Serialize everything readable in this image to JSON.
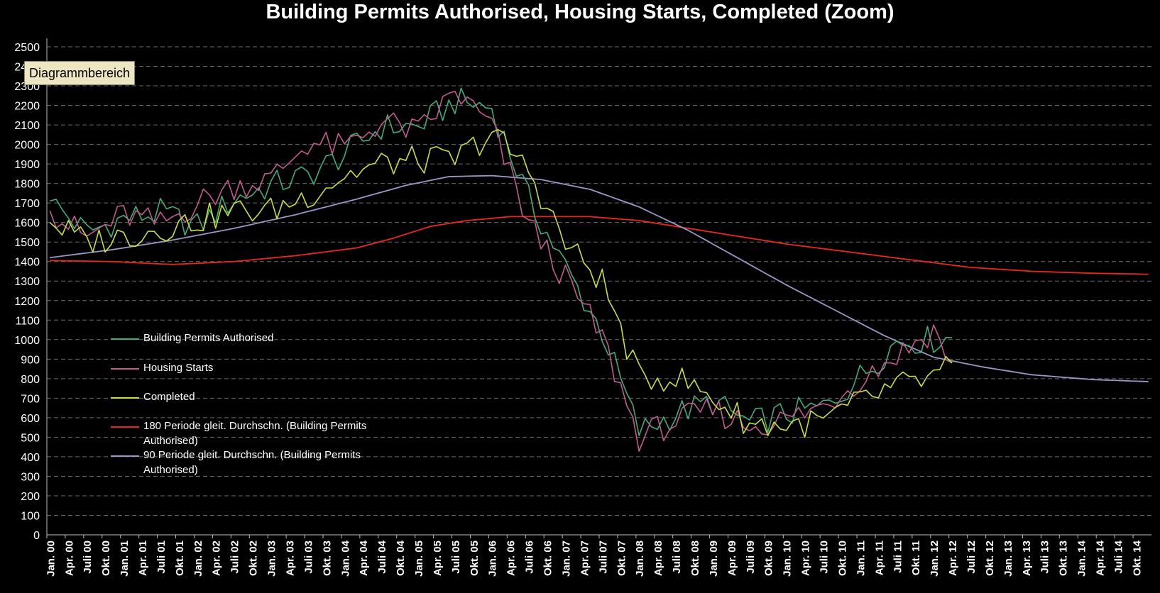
{
  "chart_data": {
    "type": "line",
    "title": "Building Permits Authorised, Housing Starts, Completed (Zoom)",
    "tooltip": "Diagrammbereich",
    "xlabel": "",
    "ylabel": "",
    "ylim": [
      0,
      2500
    ],
    "yticks": [
      0,
      100,
      200,
      300,
      400,
      500,
      600,
      700,
      800,
      900,
      1000,
      1100,
      1200,
      1300,
      1400,
      1500,
      1600,
      1700,
      1800,
      1900,
      2000,
      2100,
      2200,
      2300,
      2400,
      2500
    ],
    "grid": true,
    "x_count": 180,
    "x_tick_labels": [
      "Jan. 00",
      "Apr. 00",
      "Juli 00",
      "Okt. 00",
      "Jan. 01",
      "Apr. 01",
      "Juli 01",
      "Okt. 01",
      "Jan. 02",
      "Apr. 02",
      "Juli 02",
      "Okt. 02",
      "Jan. 03",
      "Apr. 03",
      "Juli 03",
      "Okt. 03",
      "Jan. 04",
      "Apr. 04",
      "Juli 04",
      "Okt. 04",
      "Jan. 05",
      "Apr. 05",
      "Juli 05",
      "Okt. 05",
      "Jan. 06",
      "Apr. 06",
      "Juli 06",
      "Okt. 06",
      "Jan. 07",
      "Apr. 07",
      "Juli 07",
      "Okt. 07",
      "Jan. 08",
      "Apr. 08",
      "Juli 08",
      "Okt. 08",
      "Jan. 09",
      "Apr. 09",
      "Juli 09",
      "Okt. 09",
      "Jan. 10",
      "Apr. 10",
      "Juli 10",
      "Okt. 10",
      "Jan. 11",
      "Apr. 11",
      "Juli 11",
      "Okt. 11",
      "Jan. 12",
      "Apr. 12",
      "Juli 12",
      "Okt. 12",
      "Jan. 13",
      "Apr. 13",
      "Juli 13",
      "Okt. 13",
      "Jan. 14",
      "Apr. 14",
      "Juli 14",
      "Okt. 14"
    ],
    "legend_position": "lower-left",
    "series": [
      {
        "name": "Building Permits Authorised",
        "color": "#3DAE7A",
        "anchors": [
          [
            0,
            1710
          ],
          [
            6,
            1550
          ],
          [
            12,
            1620
          ],
          [
            18,
            1650
          ],
          [
            24,
            1580
          ],
          [
            30,
            1720
          ],
          [
            36,
            1790
          ],
          [
            42,
            1840
          ],
          [
            48,
            1950
          ],
          [
            54,
            2090
          ],
          [
            60,
            2090
          ],
          [
            66,
            2220
          ],
          [
            72,
            2190
          ],
          [
            78,
            1720
          ],
          [
            84,
            1370
          ],
          [
            90,
            1040
          ],
          [
            96,
            530
          ],
          [
            102,
            620
          ],
          [
            108,
            680
          ],
          [
            114,
            570
          ],
          [
            120,
            620
          ],
          [
            126,
            650
          ],
          [
            132,
            810
          ],
          [
            138,
            990
          ],
          [
            144,
            1000
          ],
          [
            147,
            1010
          ]
        ],
        "values": null
      },
      {
        "name": "Housing Starts",
        "color": "#C35A8F",
        "anchors": [
          [
            0,
            1660
          ],
          [
            6,
            1520
          ],
          [
            12,
            1640
          ],
          [
            18,
            1590
          ],
          [
            24,
            1700
          ],
          [
            30,
            1790
          ],
          [
            36,
            1820
          ],
          [
            42,
            2010
          ],
          [
            48,
            1980
          ],
          [
            54,
            2120
          ],
          [
            60,
            2060
          ],
          [
            66,
            2270
          ],
          [
            72,
            2090
          ],
          [
            78,
            1600
          ],
          [
            84,
            1310
          ],
          [
            90,
            1010
          ],
          [
            96,
            500
          ],
          [
            102,
            580
          ],
          [
            108,
            640
          ],
          [
            114,
            560
          ],
          [
            120,
            590
          ],
          [
            126,
            660
          ],
          [
            132,
            800
          ],
          [
            138,
            920
          ],
          [
            144,
            1050
          ],
          [
            147,
            880
          ]
        ],
        "values": null
      },
      {
        "name": "Completed",
        "color": "#C8E03A",
        "anchors": [
          [
            0,
            1600
          ],
          [
            6,
            1500
          ],
          [
            12,
            1530
          ],
          [
            18,
            1570
          ],
          [
            24,
            1610
          ],
          [
            30,
            1660
          ],
          [
            36,
            1660
          ],
          [
            42,
            1740
          ],
          [
            48,
            1840
          ],
          [
            54,
            1900
          ],
          [
            60,
            1920
          ],
          [
            66,
            1920
          ],
          [
            72,
            2060
          ],
          [
            78,
            1870
          ],
          [
            84,
            1490
          ],
          [
            90,
            1300
          ],
          [
            96,
            800
          ],
          [
            102,
            810
          ],
          [
            108,
            700
          ],
          [
            114,
            570
          ],
          [
            120,
            560
          ],
          [
            126,
            580
          ],
          [
            132,
            680
          ],
          [
            138,
            760
          ],
          [
            144,
            800
          ],
          [
            147,
            880
          ]
        ],
        "values": null
      },
      {
        "name": "180 Periode gleit. Durchschn. (Building Permits Authorised)",
        "color": "#E8281E",
        "anchors": [
          [
            0,
            1405
          ],
          [
            10,
            1400
          ],
          [
            20,
            1385
          ],
          [
            30,
            1400
          ],
          [
            40,
            1430
          ],
          [
            50,
            1470
          ],
          [
            56,
            1520
          ],
          [
            62,
            1580
          ],
          [
            68,
            1610
          ],
          [
            75,
            1630
          ],
          [
            88,
            1630
          ],
          [
            96,
            1610
          ],
          [
            104,
            1570
          ],
          [
            112,
            1530
          ],
          [
            120,
            1490
          ],
          [
            130,
            1450
          ],
          [
            140,
            1410
          ],
          [
            150,
            1370
          ],
          [
            160,
            1350
          ],
          [
            170,
            1340
          ],
          [
            179,
            1335
          ]
        ],
        "values": null
      },
      {
        "name": "90 Periode gleit. Durchschn. (Building Permits Authorised)",
        "color": "#9A97C5",
        "anchors": [
          [
            0,
            1420
          ],
          [
            10,
            1460
          ],
          [
            20,
            1510
          ],
          [
            30,
            1570
          ],
          [
            40,
            1640
          ],
          [
            50,
            1720
          ],
          [
            58,
            1790
          ],
          [
            65,
            1835
          ],
          [
            72,
            1840
          ],
          [
            80,
            1820
          ],
          [
            88,
            1770
          ],
          [
            96,
            1680
          ],
          [
            104,
            1560
          ],
          [
            112,
            1420
          ],
          [
            120,
            1280
          ],
          [
            128,
            1150
          ],
          [
            136,
            1020
          ],
          [
            144,
            910
          ],
          [
            152,
            860
          ],
          [
            160,
            820
          ],
          [
            170,
            795
          ],
          [
            179,
            785
          ]
        ],
        "values": null
      }
    ]
  }
}
